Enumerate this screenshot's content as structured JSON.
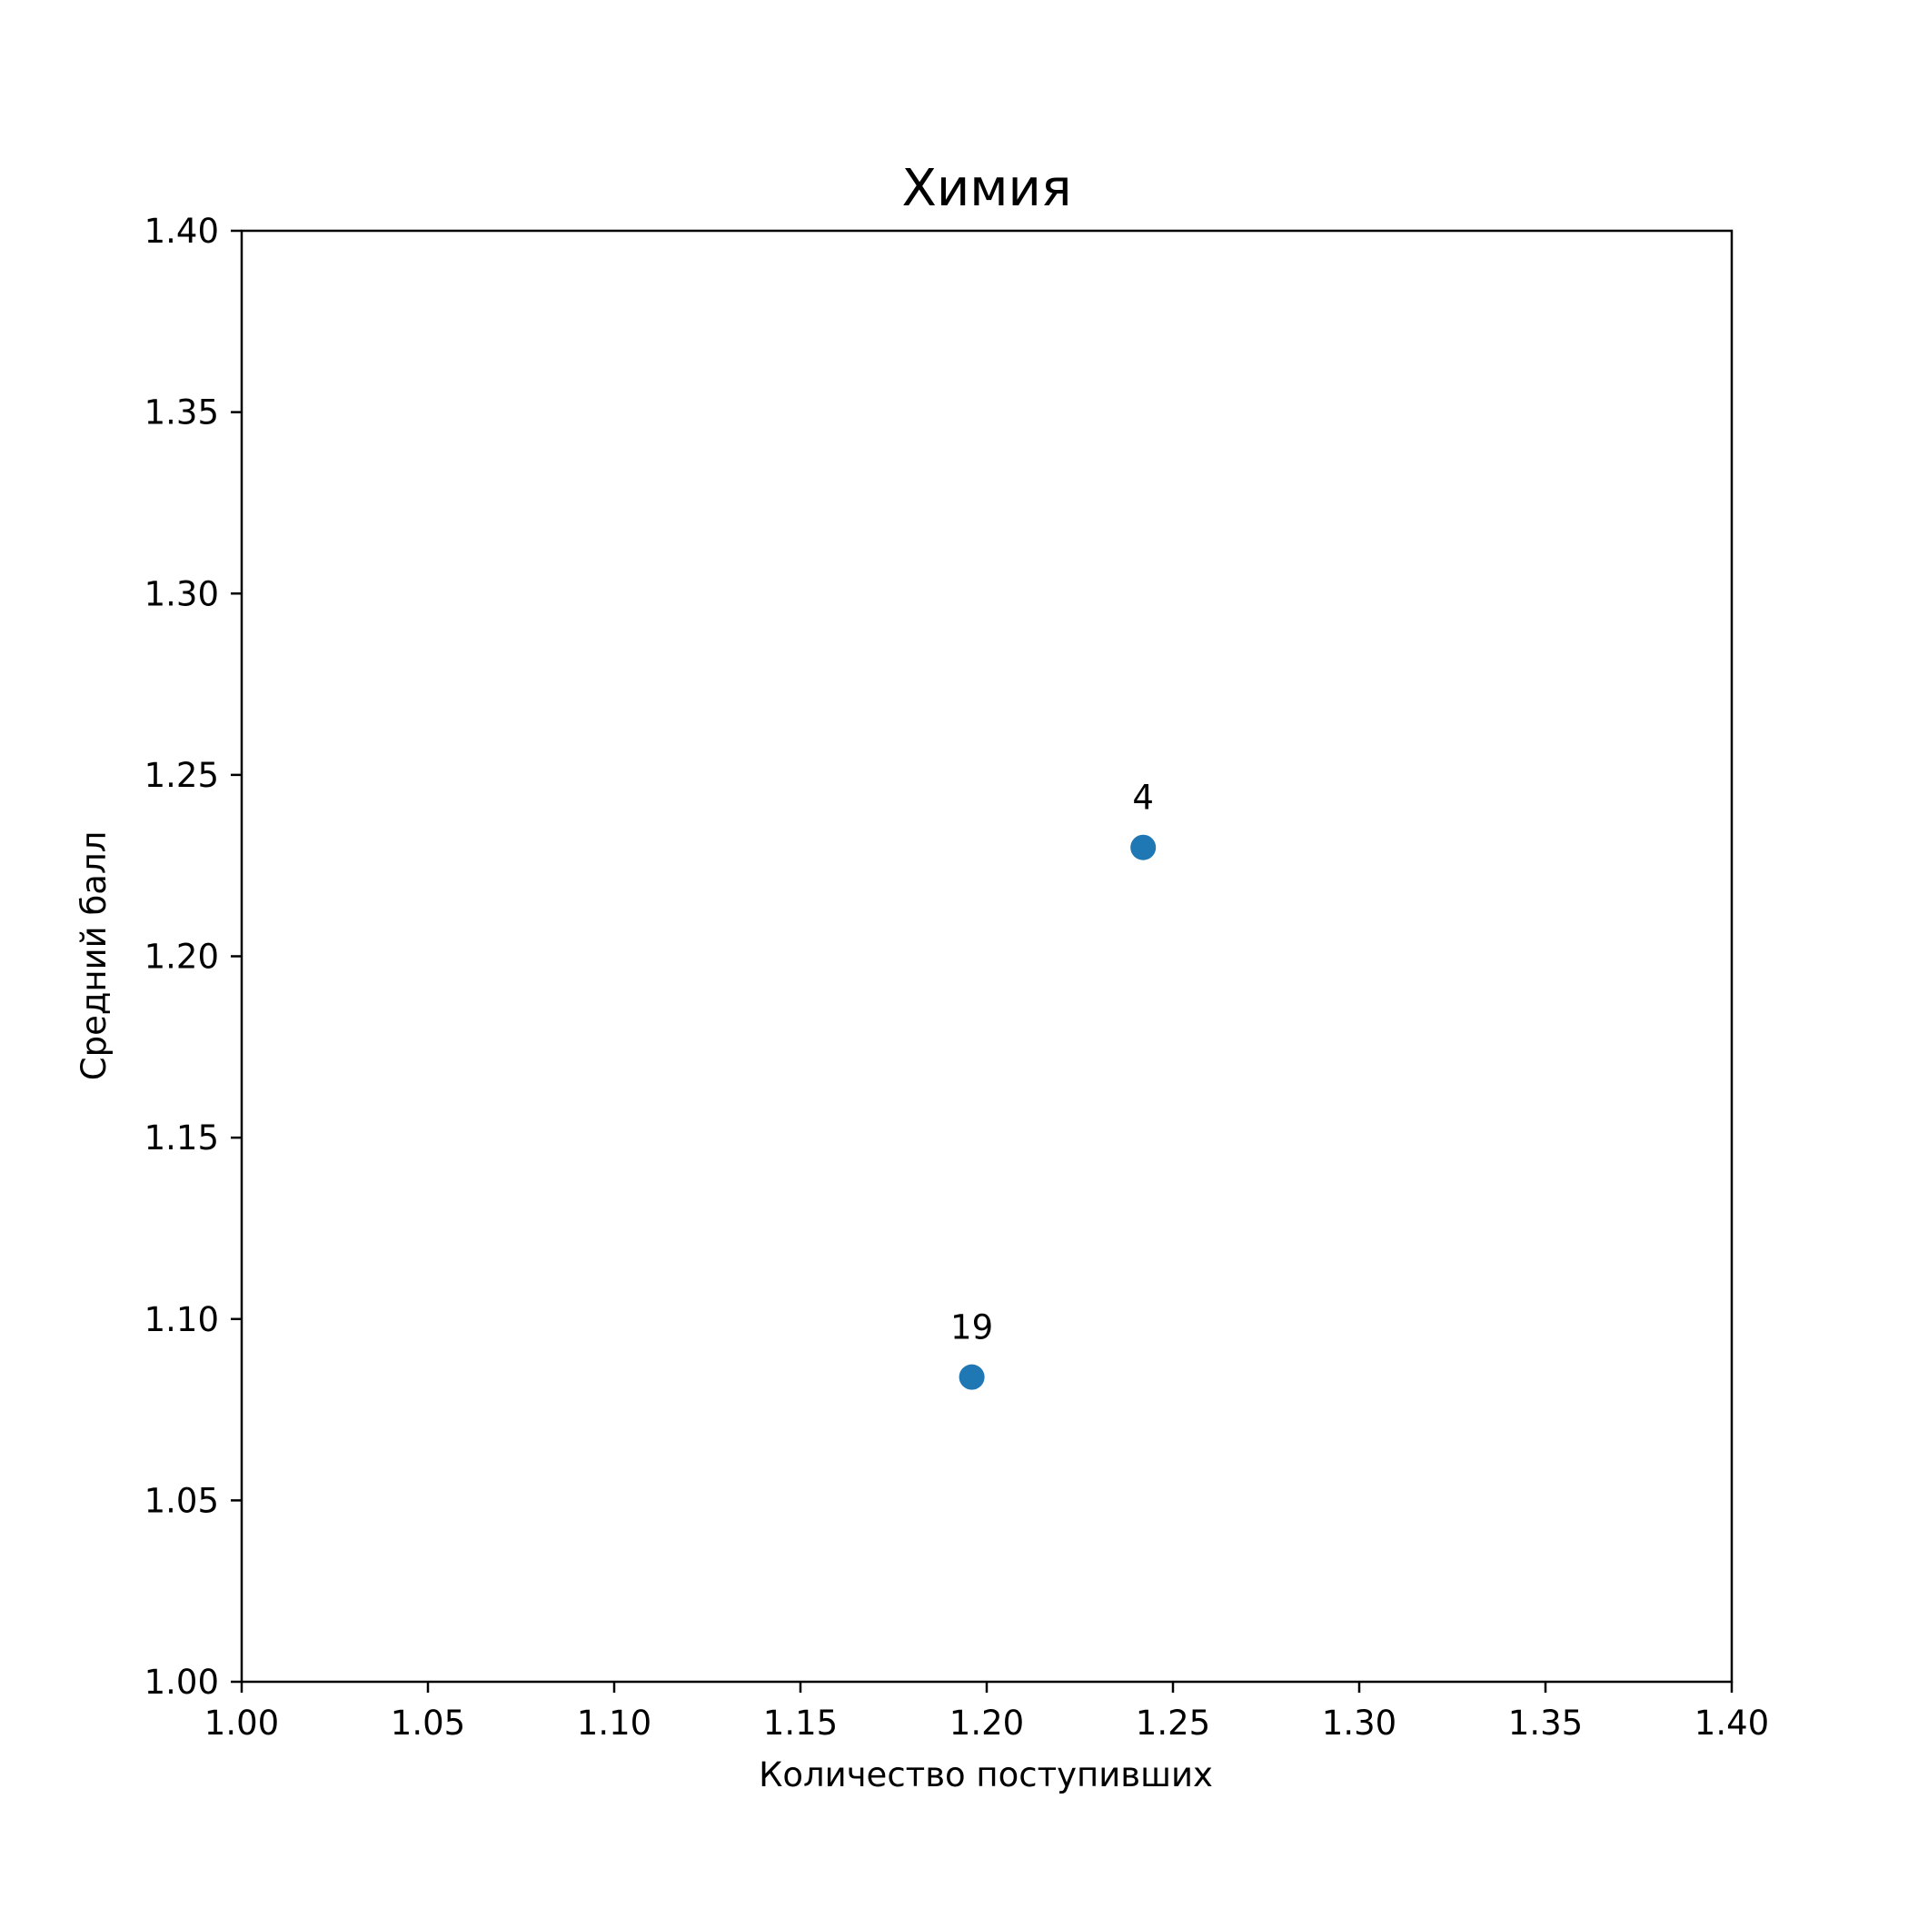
{
  "chart_data": {
    "type": "scatter",
    "title": "Химия",
    "xlabel": "Количество поступивших",
    "ylabel": "Средний балл",
    "xlim": [
      1.0,
      1.4
    ],
    "ylim": [
      1.0,
      1.4
    ],
    "xticks": [
      "1.00",
      "1.05",
      "1.10",
      "1.15",
      "1.20",
      "1.25",
      "1.30",
      "1.35",
      "1.40"
    ],
    "yticks": [
      "1.00",
      "1.05",
      "1.10",
      "1.15",
      "1.20",
      "1.25",
      "1.30",
      "1.35",
      "1.40"
    ],
    "points": [
      {
        "x": 1.242,
        "y": 1.23,
        "label": "4"
      },
      {
        "x": 1.196,
        "y": 1.084,
        "label": "19"
      }
    ],
    "grid": false,
    "marker_color": "#1f77b4"
  }
}
